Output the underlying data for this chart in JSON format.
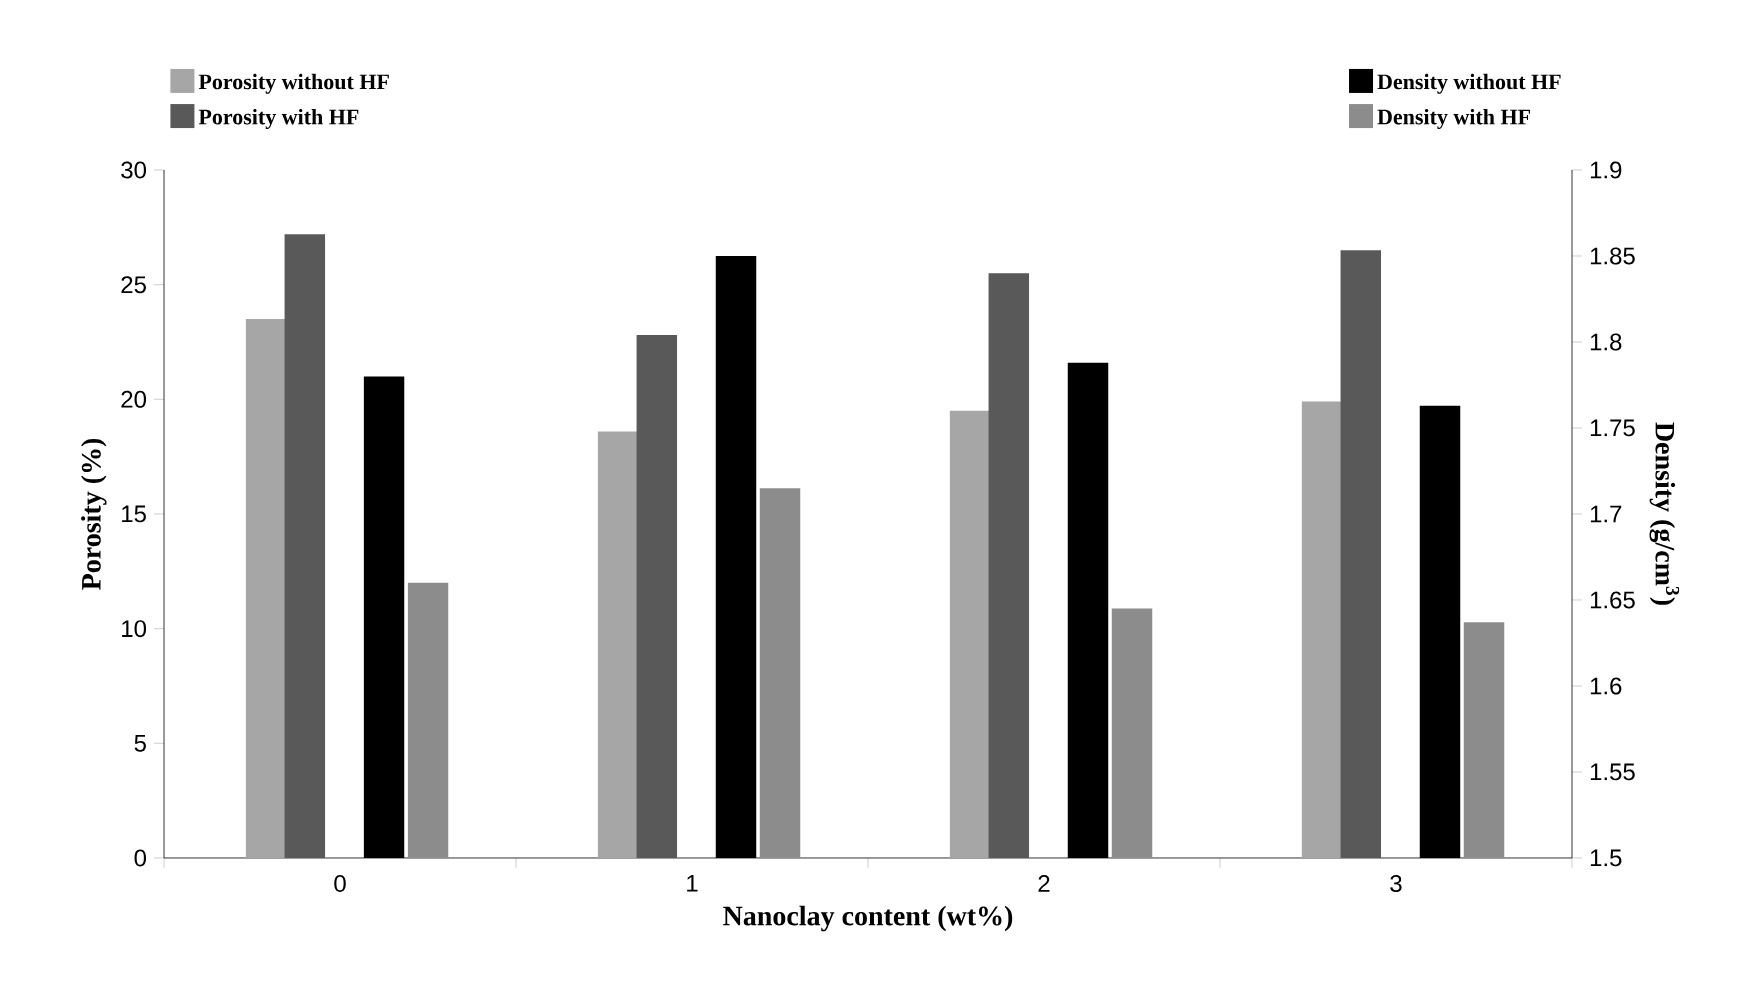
{
  "chart_data": {
    "type": "bar",
    "xlabel": "Nanoclay content (wt%)",
    "ylabel": "Porosity (%)",
    "y2label": "Density (g/cm$^{3}$)",
    "categories": [
      "0",
      "1",
      "2",
      "3"
    ],
    "series": [
      {
        "name": "Porosity without HF",
        "color": "#a6a6a6",
        "values": [
          23.5,
          18.6,
          19.5,
          19.9
        ]
      },
      {
        "name": "Porosity with HF",
        "color": "#595959",
        "values": [
          27.2,
          22.8,
          25.5,
          26.5
        ]
      },
      {
        "name": "Density without HF",
        "color": "#000000",
        "axis": "y2",
        "values": [
          1.78,
          1.85,
          1.788,
          1.763
        ]
      },
      {
        "name": "Density with HF",
        "color": "#8c8c8c",
        "axis": "y2",
        "values": [
          1.66,
          1.715,
          1.645,
          1.637
        ]
      }
    ],
    "ylim": [
      0,
      30
    ],
    "yticks": [
      0,
      5,
      10,
      15,
      20,
      25,
      30
    ],
    "y2lim": [
      1.5,
      1.9
    ],
    "y2ticks": [
      1.5,
      1.55,
      1.6,
      1.65,
      1.7,
      1.75,
      1.8,
      1.85,
      1.9
    ],
    "legend": "top",
    "grid": false
  }
}
